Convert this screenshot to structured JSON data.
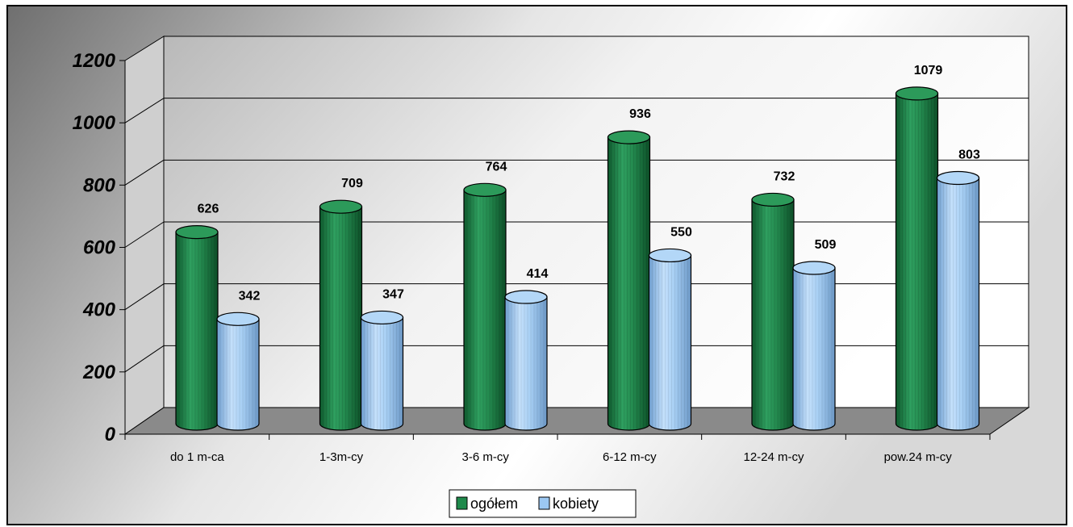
{
  "chart_data": {
    "type": "bar",
    "style": "3d-cylinder",
    "categories": [
      "do 1 m-ca",
      "1-3m-cy",
      "3-6 m-cy",
      "6-12 m-cy",
      "12-24 m-cy",
      "pow.24 m-cy"
    ],
    "series": [
      {
        "name": "ogółem",
        "values": [
          626,
          709,
          764,
          936,
          732,
          1079
        ],
        "color": "#1f8a4c"
      },
      {
        "name": "kobiety",
        "values": [
          342,
          347,
          414,
          550,
          509,
          803
        ],
        "color": "#9cc8f2"
      }
    ],
    "ylim": [
      0,
      1200
    ],
    "yticks": [
      "0",
      "200",
      "400",
      "600",
      "800",
      "1000",
      "1200"
    ],
    "grid": true,
    "legend": "bottom",
    "data_labels": true
  }
}
